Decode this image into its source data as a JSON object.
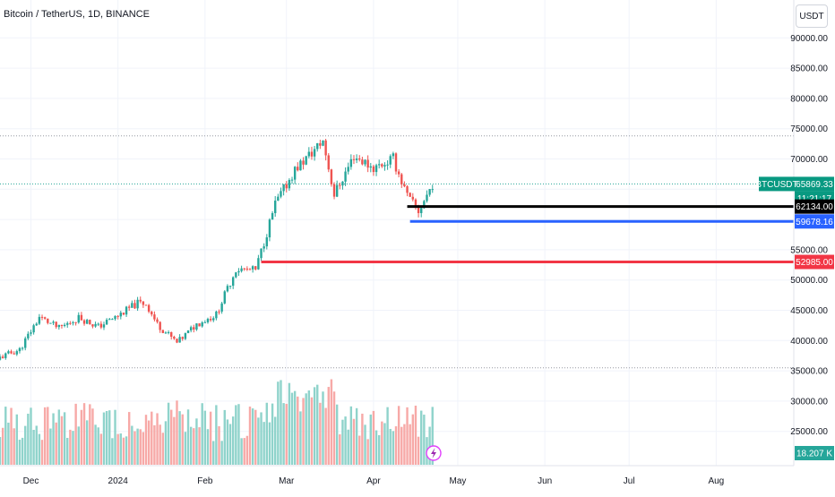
{
  "header": {
    "title": "Bitcoin / TetherUS, 1D, BINANCE",
    "currency_label": "USDT"
  },
  "price_axis": {
    "tick_labels": [
      "90000.00",
      "85000.00",
      "80000.00",
      "75000.00",
      "70000.00",
      "55000.00",
      "50000.00",
      "45000.00",
      "40000.00",
      "35000.00",
      "30000.00",
      "25000.00"
    ],
    "ticker_label": "BTCUSDT",
    "last_price": "65869.33",
    "countdown": "11:21:17",
    "level_labels": [
      "62134.00",
      "59678.16",
      "52985.00"
    ],
    "volume_label": "18.207 K"
  },
  "time_axis": {
    "tick_labels": [
      "Dec",
      "2024",
      "Feb",
      "Mar",
      "Apr",
      "May",
      "Jun",
      "Jul",
      "Aug"
    ]
  },
  "colors": {
    "up": "#26a69a",
    "down": "#ef5350",
    "up_volume": "#8fd3cb",
    "down_volume": "#f7a9a7",
    "level_black": "#000000",
    "level_blue": "#2962ff",
    "level_red": "#f23645",
    "grid": "#f0f3fa",
    "text": "#131722",
    "last_price_label": "#089981",
    "volume_label": "#26a69a"
  },
  "icons": {
    "bottom_marker": "lightning-icon"
  },
  "chart_data": {
    "type": "candlestick",
    "symbol": "Bitcoin / TetherUS",
    "interval": "1D",
    "exchange": "BINANCE",
    "x_range": [
      "2023-11-20",
      "2024-08-28"
    ],
    "y_range": [
      22000,
      93000
    ],
    "grid": true,
    "last_price": 65869.33,
    "horizontal_levels": [
      {
        "value": 62134.0,
        "color": "#000000",
        "start": "2024-04-13"
      },
      {
        "value": 59678.16,
        "color": "#2962ff",
        "start": "2024-04-14"
      },
      {
        "value": 52985.0,
        "color": "#f23645",
        "start": "2024-02-21"
      }
    ],
    "dotted_reference_levels": [
      73800,
      65869.33,
      35500
    ],
    "close_series": [
      {
        "date": "2023-11-20",
        "close": 37200
      },
      {
        "date": "2023-11-27",
        "close": 38500
      },
      {
        "date": "2023-12-04",
        "close": 43900
      },
      {
        "date": "2023-12-11",
        "close": 42000
      },
      {
        "date": "2023-12-18",
        "close": 43800
      },
      {
        "date": "2023-12-25",
        "close": 42300
      },
      {
        "date": "2024-01-01",
        "close": 44100
      },
      {
        "date": "2024-01-08",
        "close": 46200
      },
      {
        "date": "2024-01-11",
        "close": 46100
      },
      {
        "date": "2024-01-15",
        "close": 42700
      },
      {
        "date": "2024-01-22",
        "close": 39600
      },
      {
        "date": "2024-01-29",
        "close": 42700
      },
      {
        "date": "2024-02-05",
        "close": 44300
      },
      {
        "date": "2024-02-12",
        "close": 51800
      },
      {
        "date": "2024-02-19",
        "close": 51600
      },
      {
        "date": "2024-02-26",
        "close": 62500
      },
      {
        "date": "2024-03-04",
        "close": 68200
      },
      {
        "date": "2024-03-11",
        "close": 71500
      },
      {
        "date": "2024-03-14",
        "close": 73000
      },
      {
        "date": "2024-03-18",
        "close": 64100
      },
      {
        "date": "2024-03-25",
        "close": 70500
      },
      {
        "date": "2024-04-01",
        "close": 68500
      },
      {
        "date": "2024-04-08",
        "close": 70000
      },
      {
        "date": "2024-04-13",
        "close": 63800
      },
      {
        "date": "2024-04-17",
        "close": 61300
      },
      {
        "date": "2024-04-22",
        "close": 65869.33
      }
    ],
    "volume_scale_max_k": 90
  }
}
